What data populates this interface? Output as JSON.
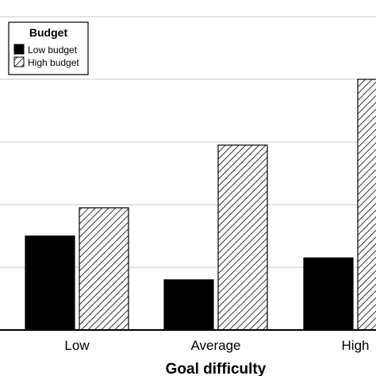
{
  "chart_data": {
    "type": "bar",
    "categories": [
      "Low",
      "Average",
      "High"
    ],
    "series": [
      {
        "name": "Low budget",
        "values": [
          1.5,
          0.8,
          1.15
        ],
        "fill": "solid",
        "color": "#000000"
      },
      {
        "name": "High budget",
        "values": [
          1.95,
          2.95,
          4.0
        ],
        "fill": "hatched",
        "color": "#000000"
      }
    ],
    "legend": {
      "title": "Budget",
      "position": "top-left"
    },
    "xlabel": "Goal difficulty",
    "ylabel": "",
    "ylim": [
      0,
      5
    ],
    "yticks": [
      1,
      2,
      3,
      4,
      5
    ],
    "grid": true
  }
}
